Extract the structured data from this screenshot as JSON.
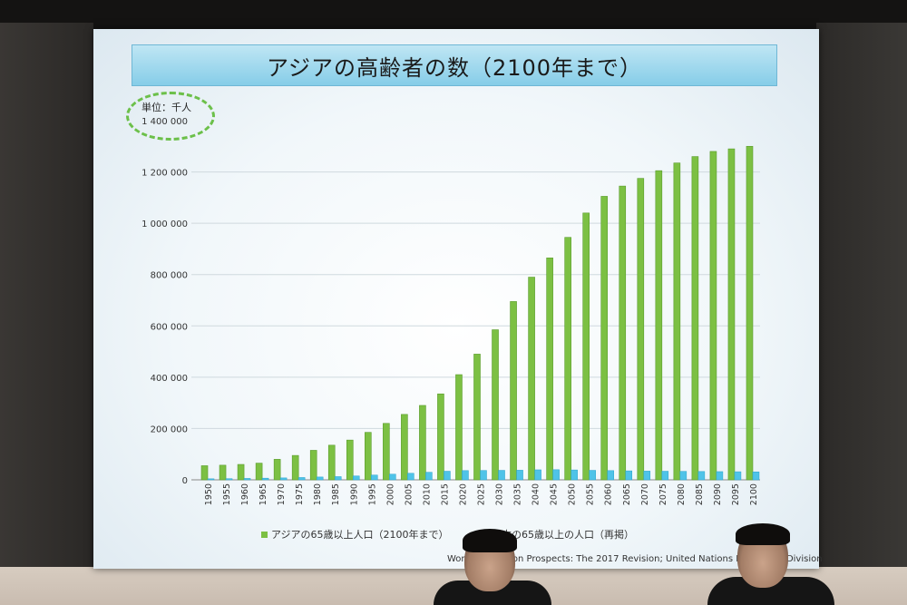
{
  "slide": {
    "title": "アジアの高齢者の数（2100年まで）",
    "unit": "単位：千人",
    "source": "World Population Prospects: The 2017 Revision; United Nations Population Division"
  },
  "colors": {
    "asia": "#7cc043",
    "japan": "#4fc3e8",
    "title_bg": "#9ed6ec",
    "ellipse": "#6cc04a"
  },
  "chart_data": {
    "type": "bar",
    "ylim": [
      0,
      1400000
    ],
    "yticks": [
      "0",
      "200 000",
      "400 000",
      "600 000",
      "800 000",
      "1 000 000",
      "1 200 000",
      "1 400 000"
    ],
    "ytick_values": [
      0,
      200000,
      400000,
      600000,
      800000,
      1000000,
      1200000,
      1400000
    ],
    "categories": [
      "1950",
      "1955",
      "1960",
      "1965",
      "1970",
      "1975",
      "1980",
      "1985",
      "1990",
      "1995",
      "2000",
      "2005",
      "2010",
      "2015",
      "2020",
      "2025",
      "2030",
      "2035",
      "2040",
      "2045",
      "2050",
      "2055",
      "2060",
      "2065",
      "2070",
      "2075",
      "2080",
      "2085",
      "2090",
      "2095",
      "2100"
    ],
    "series": [
      {
        "name": "アジアの65歳以上人口（2100年まで）",
        "values": [
          55000,
          57000,
          60000,
          65000,
          80000,
          95000,
          115000,
          135000,
          155000,
          185000,
          220000,
          255000,
          290000,
          335000,
          410000,
          490000,
          585000,
          695000,
          790000,
          865000,
          945000,
          1040000,
          1105000,
          1145000,
          1175000,
          1205000,
          1235000,
          1260000,
          1280000,
          1290000,
          1300000
        ]
      },
      {
        "name": "日本の65歳以上の人口（再掲）",
        "values": [
          4000,
          4500,
          5500,
          6500,
          7500,
          9000,
          11000,
          12500,
          15000,
          18500,
          22000,
          25500,
          29500,
          33500,
          36000,
          36500,
          37000,
          37500,
          39000,
          39500,
          38500,
          37000,
          36000,
          35000,
          34000,
          33500,
          33000,
          32500,
          32000,
          31500,
          31000
        ]
      }
    ],
    "grid": true,
    "legend": "bottom"
  }
}
